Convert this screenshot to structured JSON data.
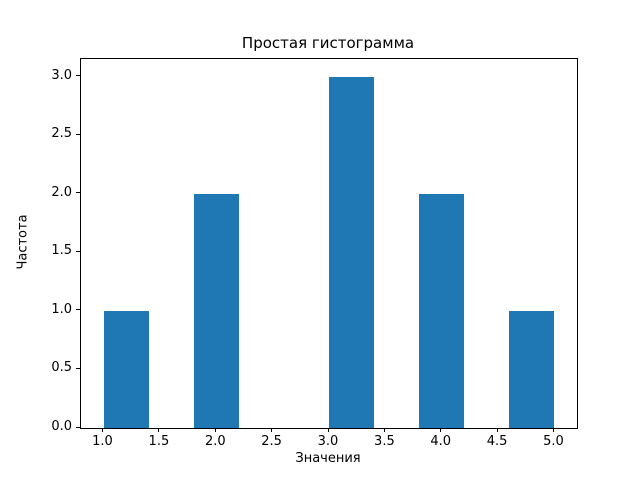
{
  "figure": {
    "background": "#ffffff",
    "text_color": "#000000"
  },
  "chart_data": {
    "type": "bar",
    "subtype": "histogram",
    "title": "Простая гистограмма",
    "xlabel": "Значения",
    "ylabel": "Частота",
    "bar_color": "#1f77b4",
    "grid": false,
    "legend": null,
    "xlim": [
      0.8,
      5.2
    ],
    "ylim": [
      0,
      3.15
    ],
    "xticks": [
      1.0,
      1.5,
      2.0,
      2.5,
      3.0,
      3.5,
      4.0,
      4.5,
      5.0
    ],
    "xtick_labels": [
      "1.0",
      "1.5",
      "2.0",
      "2.5",
      "3.0",
      "3.5",
      "4.0",
      "4.5",
      "5.0"
    ],
    "yticks": [
      0.0,
      0.5,
      1.0,
      1.5,
      2.0,
      2.5,
      3.0
    ],
    "ytick_labels": [
      "0.0",
      "0.5",
      "1.0",
      "1.5",
      "2.0",
      "2.5",
      "3.0"
    ],
    "bin_edges": [
      1.0,
      1.4,
      1.8,
      2.2,
      2.6,
      3.0,
      3.4,
      3.8,
      4.2,
      4.6,
      5.0
    ],
    "counts": [
      1,
      0,
      2,
      0,
      0,
      3,
      0,
      2,
      0,
      1
    ],
    "bars": [
      {
        "x_start": 1.0,
        "x_end": 1.4,
        "height": 1
      },
      {
        "x_start": 1.8,
        "x_end": 2.2,
        "height": 2
      },
      {
        "x_start": 3.0,
        "x_end": 3.4,
        "height": 3
      },
      {
        "x_start": 3.8,
        "x_end": 4.2,
        "height": 2
      },
      {
        "x_start": 4.6,
        "x_end": 5.0,
        "height": 1
      }
    ]
  }
}
